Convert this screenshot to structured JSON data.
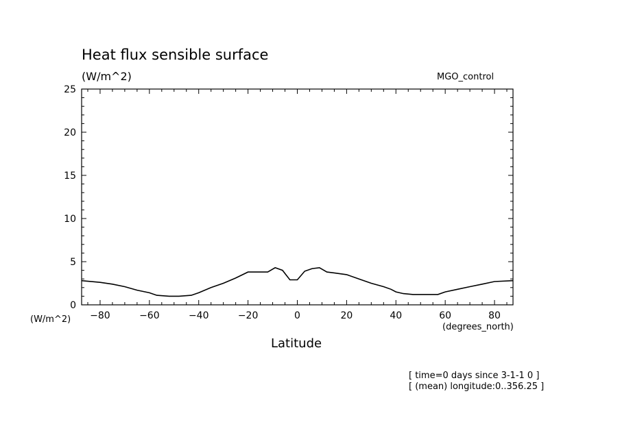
{
  "chart_data": {
    "type": "line",
    "title": "Heat flux sensible surface",
    "units_label": "(W/m^2)",
    "dataset_label": "MGO_control",
    "xlabel": "Latitude",
    "x_unit_label": "(degrees_north)",
    "y_unit_label": "(W/m^2)",
    "xlim": [
      -87.5,
      87.5
    ],
    "ylim": [
      0,
      25
    ],
    "x_ticks": [
      -80,
      -60,
      -40,
      -20,
      0,
      20,
      40,
      60,
      80
    ],
    "y_ticks": [
      0,
      5,
      10,
      15,
      20,
      25
    ],
    "x_tick_labels": [
      "−80",
      "−60",
      "−40",
      "−20",
      "0",
      "20",
      "40",
      "60",
      "80"
    ],
    "y_tick_labels": [
      "0",
      "5",
      "10",
      "15",
      "20",
      "25"
    ],
    "grid": false,
    "series": [
      {
        "x": [
          -87.5,
          -80,
          -75,
          -70,
          -65,
          -60,
          -57,
          -52,
          -48,
          -43,
          -40,
          -35,
          -30,
          -25,
          -20,
          -15,
          -12,
          -9,
          -6,
          -3,
          0,
          3,
          6,
          9,
          12,
          15,
          20,
          25,
          30,
          35,
          38,
          40,
          43,
          47,
          52,
          57,
          60,
          65,
          70,
          75,
          80,
          87.5
        ],
        "y": [
          2.8,
          2.6,
          2.4,
          2.1,
          1.7,
          1.4,
          1.1,
          1.0,
          1.0,
          1.1,
          1.4,
          2.0,
          2.5,
          3.1,
          3.8,
          3.8,
          3.8,
          4.3,
          4.0,
          2.9,
          2.9,
          3.9,
          4.2,
          4.3,
          3.8,
          3.7,
          3.5,
          3.0,
          2.5,
          2.1,
          1.8,
          1.5,
          1.3,
          1.2,
          1.2,
          1.2,
          1.5,
          1.8,
          2.1,
          2.4,
          2.7,
          2.8
        ]
      }
    ]
  },
  "footer": {
    "line1": "[ time=0 days since 3-1-1 0 ]",
    "line2": "[ (mean) longitude:0..356.25 ]"
  }
}
